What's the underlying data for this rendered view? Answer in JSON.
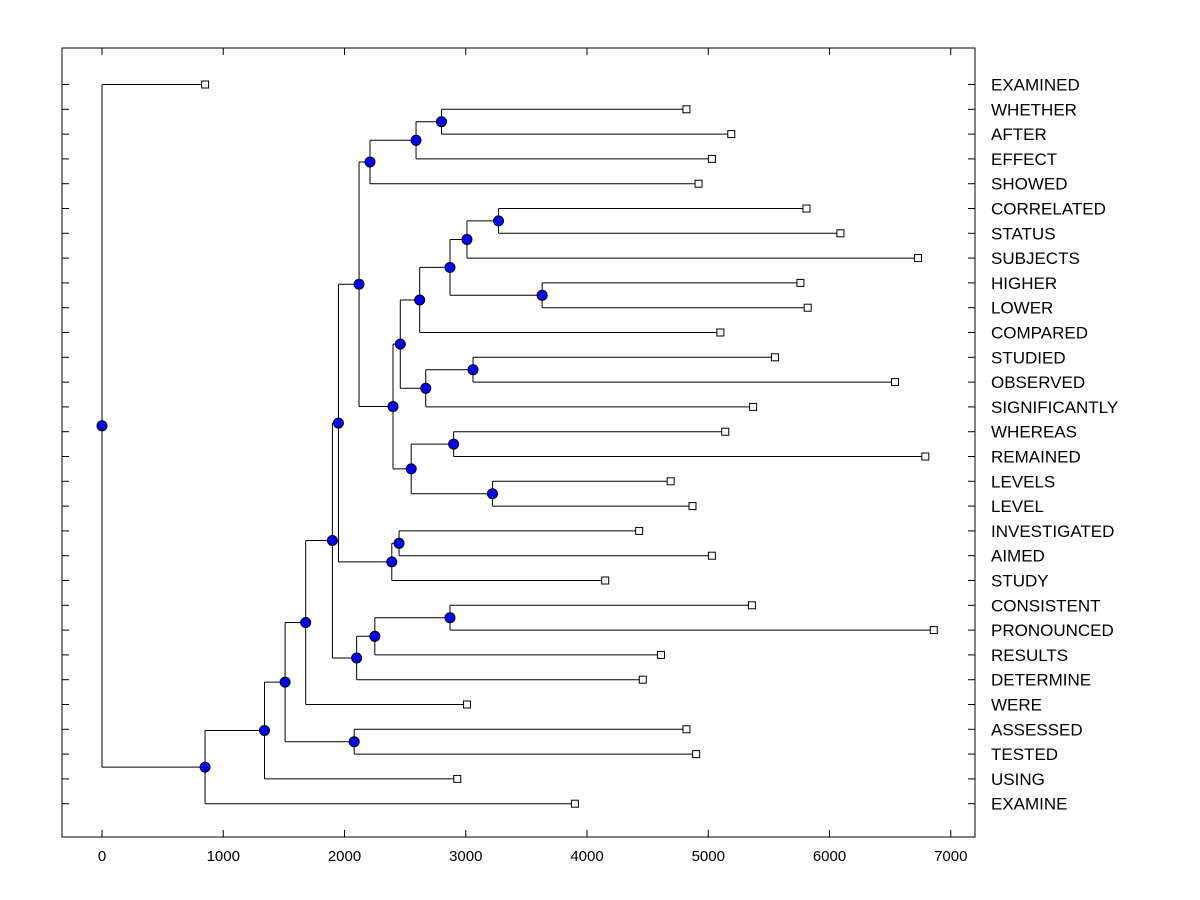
{
  "chart_data": {
    "type": "dendrogram",
    "title": "",
    "xlabel": "",
    "ylabel": "",
    "xlim": [
      -330,
      7200
    ],
    "x_ticks": [
      0,
      1000,
      2000,
      3000,
      4000,
      5000,
      6000,
      7000
    ],
    "x_tick_labels": [
      "0",
      "1000",
      "2000",
      "3000",
      "4000",
      "5000",
      "6000",
      "7000"
    ],
    "leaves": [
      {
        "label": "EXAMINED",
        "value": 850
      },
      {
        "label": "WHETHER",
        "value": 4820
      },
      {
        "label": "AFTER",
        "value": 5190
      },
      {
        "label": "EFFECT",
        "value": 5030
      },
      {
        "label": "SHOWED",
        "value": 4920
      },
      {
        "label": "CORRELATED",
        "value": 5810
      },
      {
        "label": "STATUS",
        "value": 6090
      },
      {
        "label": "SUBJECTS",
        "value": 6730
      },
      {
        "label": "HIGHER",
        "value": 5760
      },
      {
        "label": "LOWER",
        "value": 5820
      },
      {
        "label": "COMPARED",
        "value": 5100
      },
      {
        "label": "STUDIED",
        "value": 5550
      },
      {
        "label": "OBSERVED",
        "value": 6540
      },
      {
        "label": "SIGNIFICANTLY",
        "value": 5370
      },
      {
        "label": "WHEREAS",
        "value": 5140
      },
      {
        "label": "REMAINED",
        "value": 6790
      },
      {
        "label": "LEVELS",
        "value": 4690
      },
      {
        "label": "LEVEL",
        "value": 4870
      },
      {
        "label": "INVESTIGATED",
        "value": 4430
      },
      {
        "label": "AIMED",
        "value": 5030
      },
      {
        "label": "STUDY",
        "value": 4150
      },
      {
        "label": "CONSISTENT",
        "value": 5360
      },
      {
        "label": "PRONOUNCED",
        "value": 6860
      },
      {
        "label": "RESULTS",
        "value": 4610
      },
      {
        "label": "DETERMINE",
        "value": 4460
      },
      {
        "label": "WERE",
        "value": 3010
      },
      {
        "label": "ASSESSED",
        "value": 4820
      },
      {
        "label": "TESTED",
        "value": 4900
      },
      {
        "label": "USING",
        "value": 2930
      },
      {
        "label": "EXAMINE",
        "value": 3900
      }
    ],
    "merges": [
      {
        "id": "n1",
        "value": 2800,
        "children": [
          "WHETHER",
          "AFTER"
        ]
      },
      {
        "id": "n2",
        "value": 2590,
        "children": [
          "n1",
          "EFFECT"
        ]
      },
      {
        "id": "n3",
        "value": 2210,
        "children": [
          "n2",
          "SHOWED"
        ]
      },
      {
        "id": "n4",
        "value": 3270,
        "children": [
          "CORRELATED",
          "STATUS"
        ]
      },
      {
        "id": "n5",
        "value": 3010,
        "children": [
          "n4",
          "SUBJECTS"
        ]
      },
      {
        "id": "n6",
        "value": 3630,
        "children": [
          "HIGHER",
          "LOWER"
        ]
      },
      {
        "id": "n7",
        "value": 2870,
        "children": [
          "n5",
          "n6"
        ]
      },
      {
        "id": "n8",
        "value": 2620,
        "children": [
          "n7",
          "COMPARED"
        ]
      },
      {
        "id": "n9",
        "value": 3060,
        "children": [
          "STUDIED",
          "OBSERVED"
        ]
      },
      {
        "id": "n10",
        "value": 2670,
        "children": [
          "n9",
          "SIGNIFICANTLY"
        ]
      },
      {
        "id": "n11",
        "value": 2460,
        "children": [
          "n8",
          "n10"
        ]
      },
      {
        "id": "n12",
        "value": 2900,
        "children": [
          "WHEREAS",
          "REMAINED"
        ]
      },
      {
        "id": "n13",
        "value": 3220,
        "children": [
          "LEVELS",
          "LEVEL"
        ]
      },
      {
        "id": "n14",
        "value": 2550,
        "children": [
          "n12",
          "n13"
        ]
      },
      {
        "id": "n15",
        "value": 2400,
        "children": [
          "n11",
          "n14"
        ]
      },
      {
        "id": "n16",
        "value": 2120,
        "children": [
          "n3",
          "n15"
        ]
      },
      {
        "id": "n17",
        "value": 2450,
        "children": [
          "INVESTIGATED",
          "AIMED"
        ]
      },
      {
        "id": "n18",
        "value": 2390,
        "children": [
          "n17",
          "STUDY"
        ]
      },
      {
        "id": "n19",
        "value": 1950,
        "children": [
          "n16",
          "n18"
        ]
      },
      {
        "id": "n20",
        "value": 2870,
        "children": [
          "CONSISTENT",
          "PRONOUNCED"
        ]
      },
      {
        "id": "n21",
        "value": 2250,
        "children": [
          "n20",
          "RESULTS"
        ]
      },
      {
        "id": "n22",
        "value": 2100,
        "children": [
          "n21",
          "DETERMINE"
        ]
      },
      {
        "id": "n23",
        "value": 1900,
        "children": [
          "n19",
          "n22"
        ]
      },
      {
        "id": "n24",
        "value": 1680,
        "children": [
          "n23",
          "WERE"
        ]
      },
      {
        "id": "n25",
        "value": 2080,
        "children": [
          "ASSESSED",
          "TESTED"
        ]
      },
      {
        "id": "n26",
        "value": 1510,
        "children": [
          "n24",
          "n25"
        ]
      },
      {
        "id": "n27",
        "value": 1340,
        "children": [
          "n26",
          "USING"
        ]
      },
      {
        "id": "n28",
        "value": 850,
        "children": [
          "n27",
          "EXAMINE"
        ]
      },
      {
        "id": "n29",
        "value": 0,
        "children": [
          "EXAMINED",
          "n28"
        ]
      }
    ],
    "colors": {
      "node_fill": "#0000ff",
      "leaf_fill": "#ffffff",
      "line": "#000000"
    }
  }
}
